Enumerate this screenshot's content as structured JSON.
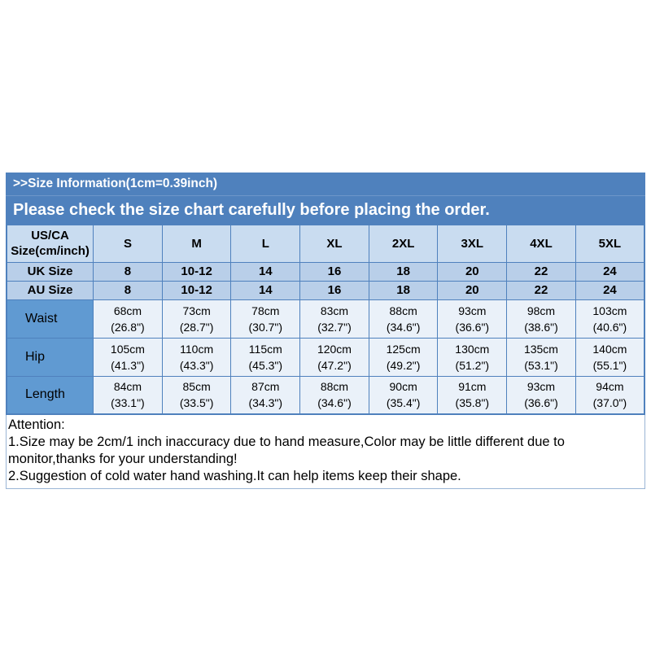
{
  "banner": {
    "title": ">>Size Information(1cm=0.39inch)",
    "subtitle": "Please check the size chart carefully before placing the order."
  },
  "table": {
    "corner_label_line1": "US/CA",
    "corner_label_line2": "Size(cm/inch)",
    "columns": [
      "S",
      "M",
      "L",
      "XL",
      "2XL",
      "3XL",
      "4XL",
      "5XL"
    ],
    "size_rows": [
      {
        "label": "UK Size",
        "values": [
          "8",
          "10-12",
          "14",
          "16",
          "18",
          "20",
          "22",
          "24"
        ]
      },
      {
        "label": "AU Size",
        "values": [
          "8",
          "10-12",
          "14",
          "16",
          "18",
          "20",
          "22",
          "24"
        ]
      }
    ],
    "measure_rows": [
      {
        "label": "Waist",
        "values": [
          [
            "68cm",
            "(26.8\")"
          ],
          [
            "73cm",
            "(28.7\")"
          ],
          [
            "78cm",
            "(30.7\")"
          ],
          [
            "83cm",
            "(32.7\")"
          ],
          [
            "88cm",
            "(34.6\")"
          ],
          [
            "93cm",
            "(36.6\")"
          ],
          [
            "98cm",
            "(38.6\")"
          ],
          [
            "103cm",
            "(40.6\")"
          ]
        ]
      },
      {
        "label": "Hip",
        "values": [
          [
            "105cm",
            "(41.3\")"
          ],
          [
            "110cm",
            "(43.3\")"
          ],
          [
            "115cm",
            "(45.3\")"
          ],
          [
            "120cm",
            "(47.2\")"
          ],
          [
            "125cm",
            "(49.2\")"
          ],
          [
            "130cm",
            "(51.2\")"
          ],
          [
            "135cm",
            "(53.1\")"
          ],
          [
            "140cm",
            "(55.1\")"
          ]
        ]
      },
      {
        "label": "Length",
        "values": [
          [
            "84cm",
            "(33.1\")"
          ],
          [
            "85cm",
            "(33.5\")"
          ],
          [
            "87cm",
            "(34.3\")"
          ],
          [
            "88cm",
            "(34.6\")"
          ],
          [
            "90cm",
            "(35.4\")"
          ],
          [
            "91cm",
            "(35.8\")"
          ],
          [
            "93cm",
            "(36.6\")"
          ],
          [
            "94cm",
            "(37.0\")"
          ]
        ]
      }
    ]
  },
  "attention": {
    "heading": "Attention:",
    "lines": [
      "1.Size may be 2cm/1 inch inaccuracy due to hand measure,Color may be little different due to monitor,thanks for your understanding!",
      "2.Suggestion of cold water hand washing.It can help items keep their shape."
    ]
  },
  "colors": {
    "banner_bg": "#4F81BD",
    "header_row_bg": "#C9DCF0",
    "size_row_bg": "#B9CFE9",
    "measure_label_bg": "#609AD2",
    "measure_cell_bg": "#EAF1F9",
    "border": "#4F81BD",
    "banner_text": "#FFFFFF",
    "table_text": "#000000"
  }
}
